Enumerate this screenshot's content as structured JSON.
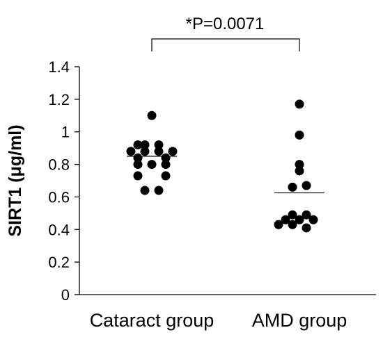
{
  "chart_data": {
    "type": "scatter",
    "ylabel": "SIRT1 (μg/ml)",
    "ylim": [
      0,
      1.4
    ],
    "yticks": [
      "0",
      "0.2",
      "0.4",
      "0.6",
      "0.8",
      "1",
      "1.2",
      "1.4"
    ],
    "categories": [
      "Cataract group",
      "AMD group"
    ],
    "series": [
      {
        "points": [
          {
            "offset": 0,
            "y": 1.1
          },
          {
            "offset": -2,
            "y": 0.92
          },
          {
            "offset": -1,
            "y": 0.92
          },
          {
            "offset": 1,
            "y": 0.92
          },
          {
            "offset": -3,
            "y": 0.88
          },
          {
            "offset": -1,
            "y": 0.88
          },
          {
            "offset": 1,
            "y": 0.88
          },
          {
            "offset": 3,
            "y": 0.88
          },
          {
            "offset": -2,
            "y": 0.84
          },
          {
            "offset": 2,
            "y": 0.84
          },
          {
            "offset": -2,
            "y": 0.8
          },
          {
            "offset": 0,
            "y": 0.8
          },
          {
            "offset": 2,
            "y": 0.8
          },
          {
            "offset": -2,
            "y": 0.73
          },
          {
            "offset": 2,
            "y": 0.73
          },
          {
            "offset": -1,
            "y": 0.64
          },
          {
            "offset": 1,
            "y": 0.64
          }
        ],
        "mean": 0.85
      },
      {
        "points": [
          {
            "offset": 0,
            "y": 1.17
          },
          {
            "offset": 0,
            "y": 0.98
          },
          {
            "offset": 0,
            "y": 0.8
          },
          {
            "offset": 0,
            "y": 0.76
          },
          {
            "offset": -1,
            "y": 0.66
          },
          {
            "offset": 1,
            "y": 0.67
          },
          {
            "offset": -1,
            "y": 0.49
          },
          {
            "offset": 1,
            "y": 0.49
          },
          {
            "offset": -2,
            "y": 0.46
          },
          {
            "offset": 0,
            "y": 0.46
          },
          {
            "offset": 2,
            "y": 0.46
          },
          {
            "offset": -3,
            "y": 0.43
          },
          {
            "offset": -1,
            "y": 0.43
          },
          {
            "offset": 1,
            "y": 0.41
          }
        ],
        "mean": 0.625
      }
    ],
    "annotation": "*P=0.0071",
    "point_color": "#000000"
  }
}
